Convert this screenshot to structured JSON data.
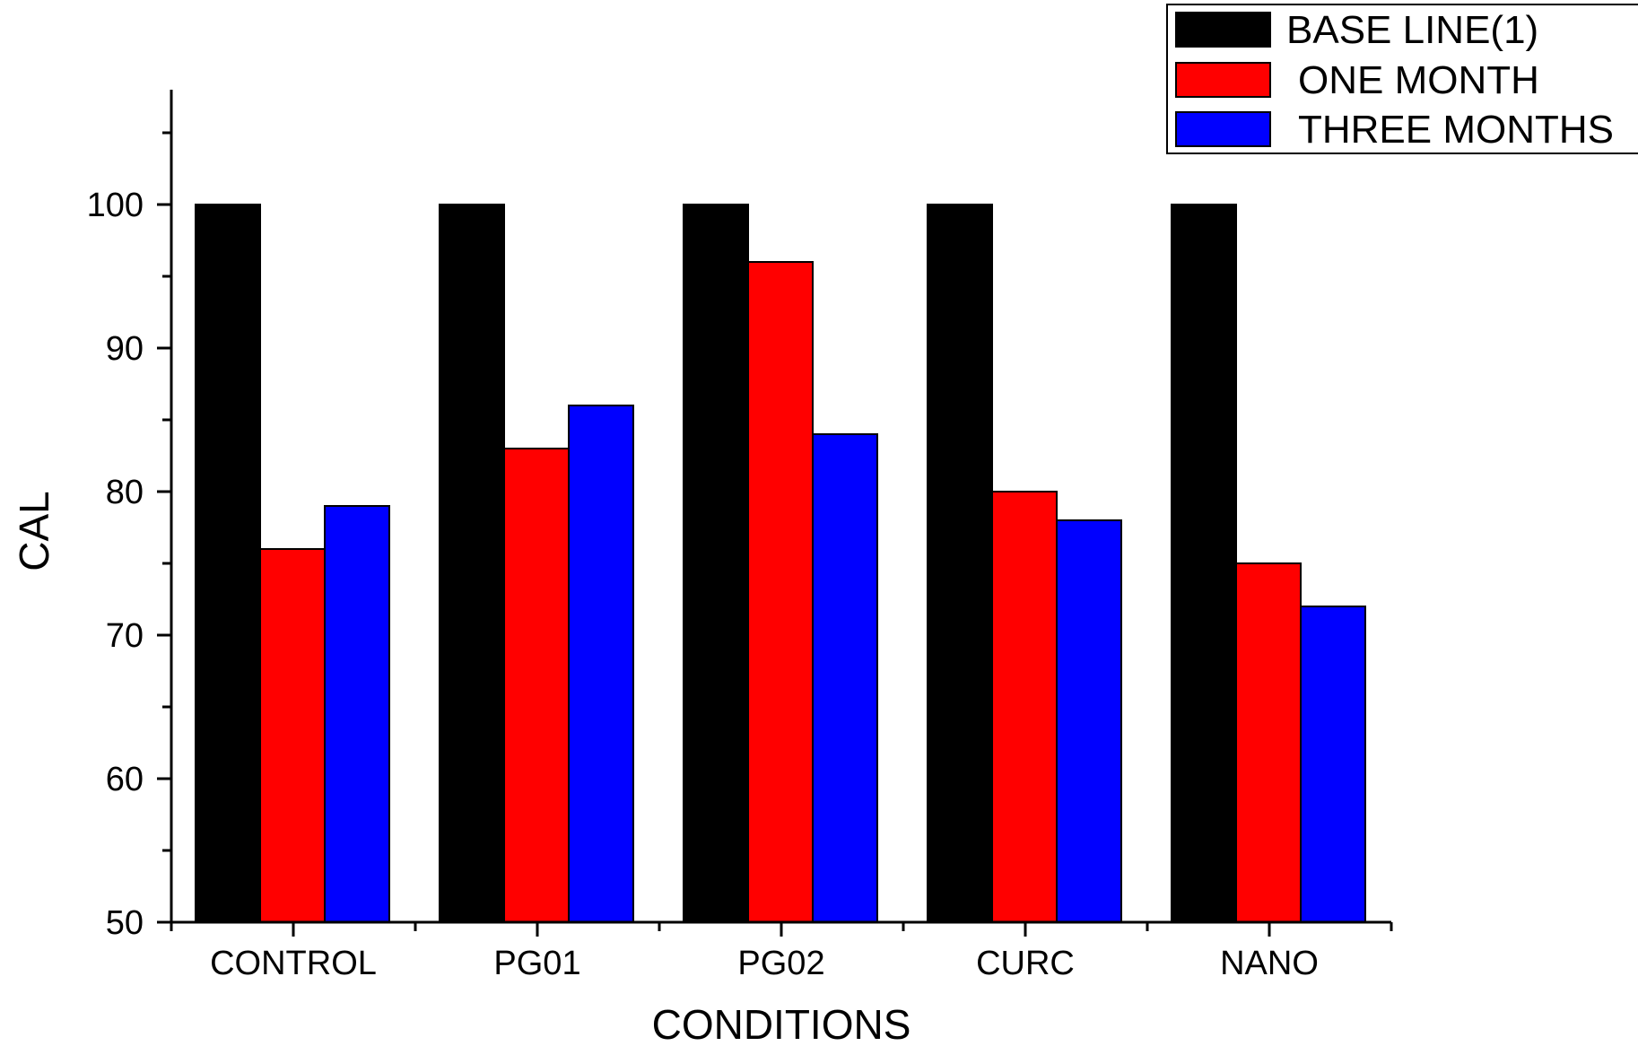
{
  "chart_data": {
    "type": "bar",
    "title": "",
    "xlabel": "CONDITIONS",
    "ylabel": "CAL",
    "categories": [
      "CONTROL",
      "PG01",
      "PG02",
      "CURC",
      "NANO"
    ],
    "series": [
      {
        "name": "BASE LINE(1)",
        "color": "#000000",
        "values": [
          100,
          100,
          100,
          100,
          100
        ]
      },
      {
        "name": "ONE MONTH",
        "color": "#ff0000",
        "values": [
          76,
          83,
          96,
          80,
          75
        ]
      },
      {
        "name": "THREE MONTHS",
        "color": "#0000ff",
        "values": [
          79,
          86,
          84,
          78,
          72
        ]
      }
    ],
    "ylim": [
      50,
      108
    ],
    "yticks": [
      "50",
      "60",
      "70",
      "80",
      "90",
      "100"
    ],
    "grid": false,
    "legend_position": "top-right"
  }
}
